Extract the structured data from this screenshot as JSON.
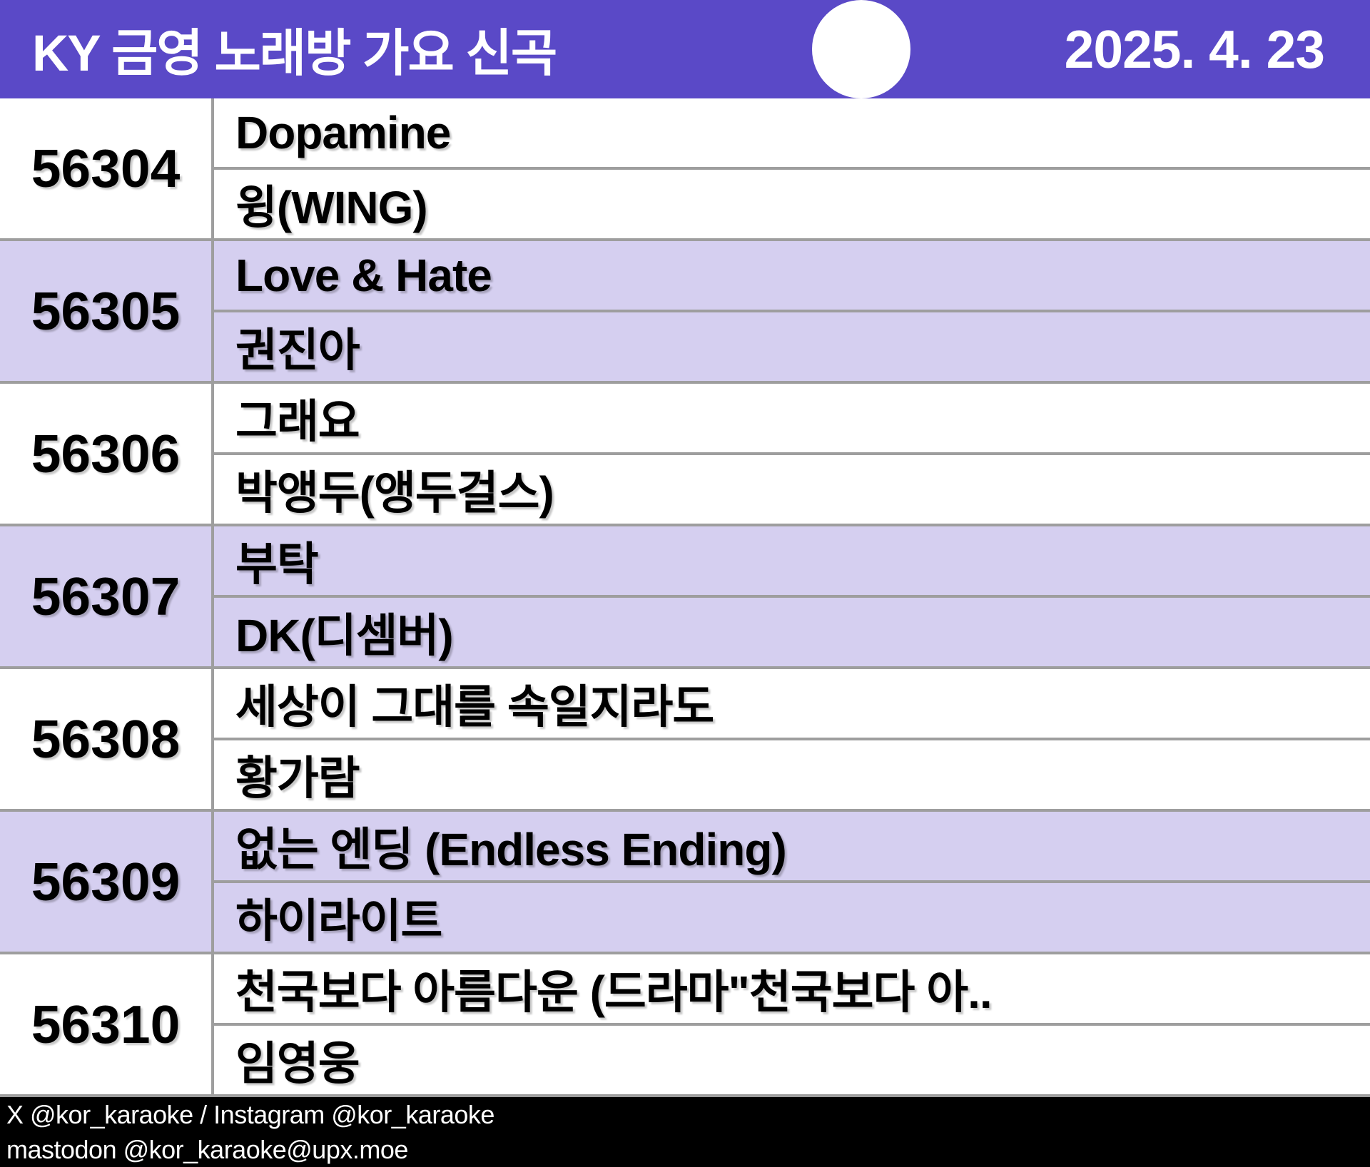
{
  "header": {
    "title": "KY 금영 노래방 가요 신곡",
    "date": "2025. 4. 23",
    "background_color": "#5a49c7",
    "text_color": "#ffffff",
    "circle_color": "#ffffff"
  },
  "songs": [
    {
      "number": "56304",
      "title": "Dopamine",
      "artist": "윙(WING)"
    },
    {
      "number": "56305",
      "title": "Love & Hate",
      "artist": "권진아"
    },
    {
      "number": "56306",
      "title": "그래요",
      "artist": "박앵두(앵두걸스)"
    },
    {
      "number": "56307",
      "title": "부탁",
      "artist": "DK(디셈버)"
    },
    {
      "number": "56308",
      "title": "세상이 그대를 속일지라도",
      "artist": "황가람"
    },
    {
      "number": "56309",
      "title": "없는 엔딩 (Endless Ending)",
      "artist": "하이라이트"
    },
    {
      "number": "56310",
      "title": "천국보다 아름다운 (드라마\"천국보다 아..",
      "artist": "임영웅"
    }
  ],
  "table_style": {
    "row_alt_color": "#d5cff0",
    "row_color": "#ffffff",
    "border_color": "#9e9e9e",
    "text_color": "#000000"
  },
  "footer": {
    "line1": "X @kor_karaoke / Instagram @kor_karaoke",
    "line2": "mastodon @kor_karaoke@upx.moe",
    "background_color": "#000000",
    "text_color": "#ffffff"
  }
}
